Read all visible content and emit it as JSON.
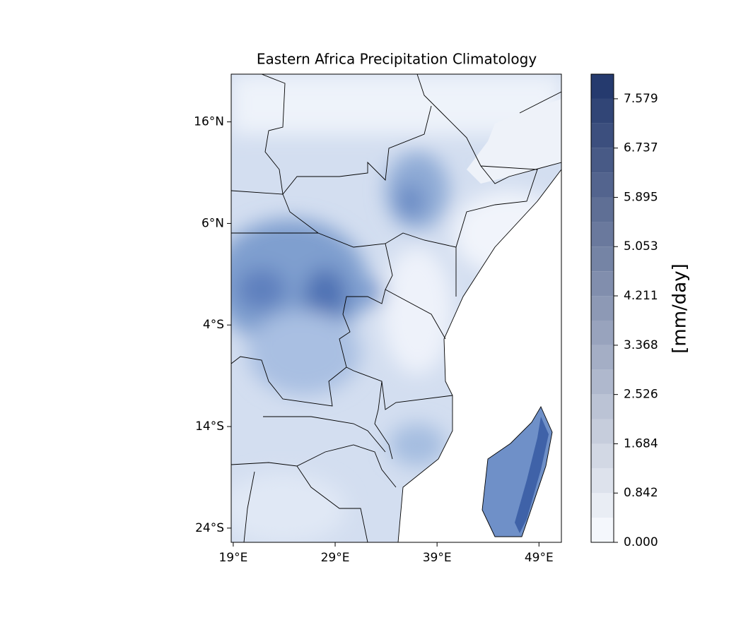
{
  "chart_data": {
    "type": "map",
    "title": "Eastern Africa Precipitation Climatology",
    "xlim": [
      18.8,
      51.2
    ],
    "ylim": [
      -25.4,
      20.7
    ],
    "xticks": [
      {
        "value": 19,
        "label": "19°E"
      },
      {
        "value": 29,
        "label": "29°E"
      },
      {
        "value": 39,
        "label": "39°E"
      },
      {
        "value": 49,
        "label": "49°E"
      }
    ],
    "yticks": [
      {
        "value": 16,
        "label": "16°N"
      },
      {
        "value": 6,
        "label": "6°N"
      },
      {
        "value": -4,
        "label": "4°S"
      },
      {
        "value": -14,
        "label": "14°S"
      },
      {
        "value": -24,
        "label": "24°S"
      }
    ],
    "colorbar": {
      "label": "[mm/day]",
      "lim": [
        0,
        8.0
      ],
      "colors": [
        "#f4f7fc",
        "#253a6e"
      ],
      "ticks": [
        {
          "value": 0,
          "label": "0.000"
        },
        {
          "value": 0.842,
          "label": "0.842"
        },
        {
          "value": 1.684,
          "label": "1.684"
        },
        {
          "value": 2.526,
          "label": "2.526"
        },
        {
          "value": 3.368,
          "label": "3.368"
        },
        {
          "value": 4.211,
          "label": "4.211"
        },
        {
          "value": 5.053,
          "label": "5.053"
        },
        {
          "value": 5.895,
          "label": "5.895"
        },
        {
          "value": 6.737,
          "label": "6.737"
        },
        {
          "value": 7.579,
          "label": "7.579"
        }
      ]
    }
  }
}
